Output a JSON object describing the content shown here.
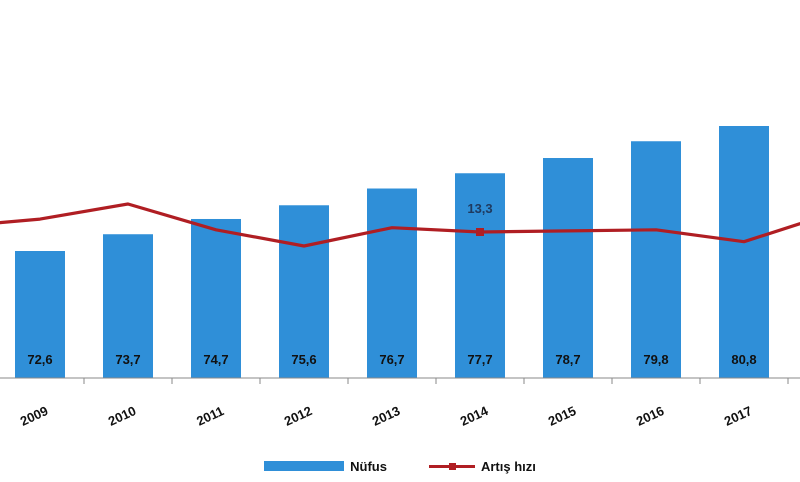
{
  "chart_data": {
    "type": "bar",
    "categories": [
      "2009",
      "2010",
      "2011",
      "2012",
      "2013",
      "2014",
      "2015",
      "2016",
      "2017"
    ],
    "series": [
      {
        "name": "Nüfus",
        "kind": "bar",
        "color": "#2f8fd8",
        "values": [
          72.6,
          73.7,
          74.7,
          75.6,
          76.7,
          77.7,
          78.7,
          79.8,
          80.8
        ],
        "value_labels": [
          "72,6",
          "73,7",
          "74,7",
          "75,6",
          "76,7",
          "77,7",
          "78,7",
          "79,8",
          "80,8"
        ]
      },
      {
        "name": "Artış hızı",
        "kind": "line",
        "color": "#b01e23",
        "values": [
          14.5,
          15.9,
          13.5,
          12.0,
          13.7,
          13.3,
          13.4,
          13.5,
          12.4
        ],
        "labeled_point": {
          "index": 5,
          "label": "13,3"
        }
      }
    ],
    "legend_position": "bottom",
    "grid": false
  }
}
